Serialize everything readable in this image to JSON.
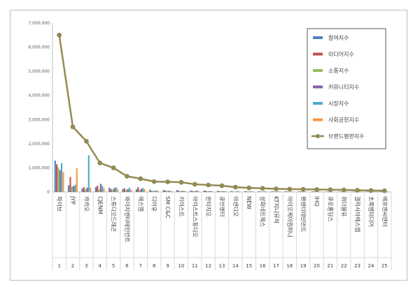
{
  "chart_data": {
    "type": "bar",
    "title": "",
    "xlabel": "",
    "ylabel": "",
    "ylim": [
      0,
      7000000
    ],
    "yticks": [
      "0",
      "1,000,000",
      "2,000,000",
      "3,000,000",
      "4,000,000",
      "5,000,000",
      "6,000,000",
      "7,000,000"
    ],
    "grid": false,
    "legend_position": "top-right",
    "categories": [
      "하이브",
      "JYP",
      "카카오",
      "CJENM",
      "스튜디오드래곤",
      "와이지엔터테인먼트",
      "에스엠",
      "디어유",
      "SM C&C",
      "키이스트",
      "아이스트스튜디오",
      "판타지오",
      "큐브엔터",
      "아센디오",
      "NEW",
      "삼화네트웍스",
      "KT지니뮤직",
      "아이오케이컴퍼니",
      "팬엔터테인먼트",
      "IHQ",
      "큐로홀딩스",
      "위더블유",
      "갤럭시아에스엠",
      "초록뱀미디어",
      "에프엔씨엔터"
    ],
    "ranks": [
      "1",
      "2",
      "3",
      "4",
      "5",
      "6",
      "7",
      "8",
      "9",
      "10",
      "11",
      "12",
      "13",
      "14",
      "15",
      "16",
      "17",
      "18",
      "19",
      "20",
      "21",
      "22",
      "23",
      "24",
      "25"
    ],
    "series": [
      {
        "name": "참여지수",
        "type": "bar",
        "color": "#4f81bd",
        "values": [
          1300000,
          280000,
          150000,
          200000,
          180000,
          130000,
          110000,
          100000,
          80000,
          80000,
          60000,
          60000,
          50000,
          40000,
          30000,
          30000,
          30000,
          30000,
          25000,
          25000,
          20000,
          20000,
          15000,
          15000,
          10000
        ]
      },
      {
        "name": "미디어지수",
        "type": "bar",
        "color": "#c0504d",
        "values": [
          1150000,
          620000,
          200000,
          260000,
          120000,
          150000,
          200000,
          40000,
          60000,
          50000,
          40000,
          50000,
          30000,
          20000,
          30000,
          20000,
          20000,
          20000,
          20000,
          20000,
          15000,
          10000,
          10000,
          10000,
          8000
        ]
      },
      {
        "name": "소통지수",
        "type": "bar",
        "color": "#9bbb59",
        "values": [
          1020000,
          220000,
          100000,
          110000,
          100000,
          80000,
          90000,
          50000,
          40000,
          40000,
          30000,
          30000,
          30000,
          20000,
          20000,
          20000,
          20000,
          15000,
          15000,
          15000,
          10000,
          10000,
          10000,
          8000,
          8000
        ]
      },
      {
        "name": "커뮤니티지수",
        "type": "bar",
        "color": "#8064a2",
        "values": [
          900000,
          250000,
          180000,
          340000,
          160000,
          120000,
          130000,
          40000,
          50000,
          40000,
          40000,
          30000,
          30000,
          20000,
          20000,
          20000,
          20000,
          15000,
          15000,
          15000,
          10000,
          10000,
          10000,
          8000,
          8000
        ]
      },
      {
        "name": "시장지수",
        "type": "bar",
        "color": "#4bacc6",
        "values": [
          1200000,
          300000,
          1520000,
          250000,
          200000,
          180000,
          170000,
          60000,
          40000,
          50000,
          60000,
          40000,
          30000,
          40000,
          30000,
          30000,
          25000,
          20000,
          20000,
          20000,
          15000,
          10000,
          10000,
          10000,
          8000
        ]
      },
      {
        "name": "사회공헌지수",
        "type": "bar",
        "color": "#f79646",
        "values": [
          820000,
          980000,
          180000,
          160000,
          130000,
          90000,
          110000,
          40000,
          40000,
          40000,
          30000,
          30000,
          30000,
          20000,
          20000,
          20000,
          15000,
          15000,
          15000,
          15000,
          10000,
          10000,
          10000,
          8000,
          8000
        ]
      },
      {
        "name": "브랜드평판지수",
        "type": "line",
        "color": "#948a54",
        "values": [
          6500000,
          2700000,
          2100000,
          1200000,
          1000000,
          650000,
          550000,
          430000,
          420000,
          400000,
          320000,
          290000,
          260000,
          200000,
          170000,
          150000,
          130000,
          120000,
          110000,
          100000,
          95000,
          85000,
          70000,
          60000,
          50000
        ]
      }
    ]
  }
}
